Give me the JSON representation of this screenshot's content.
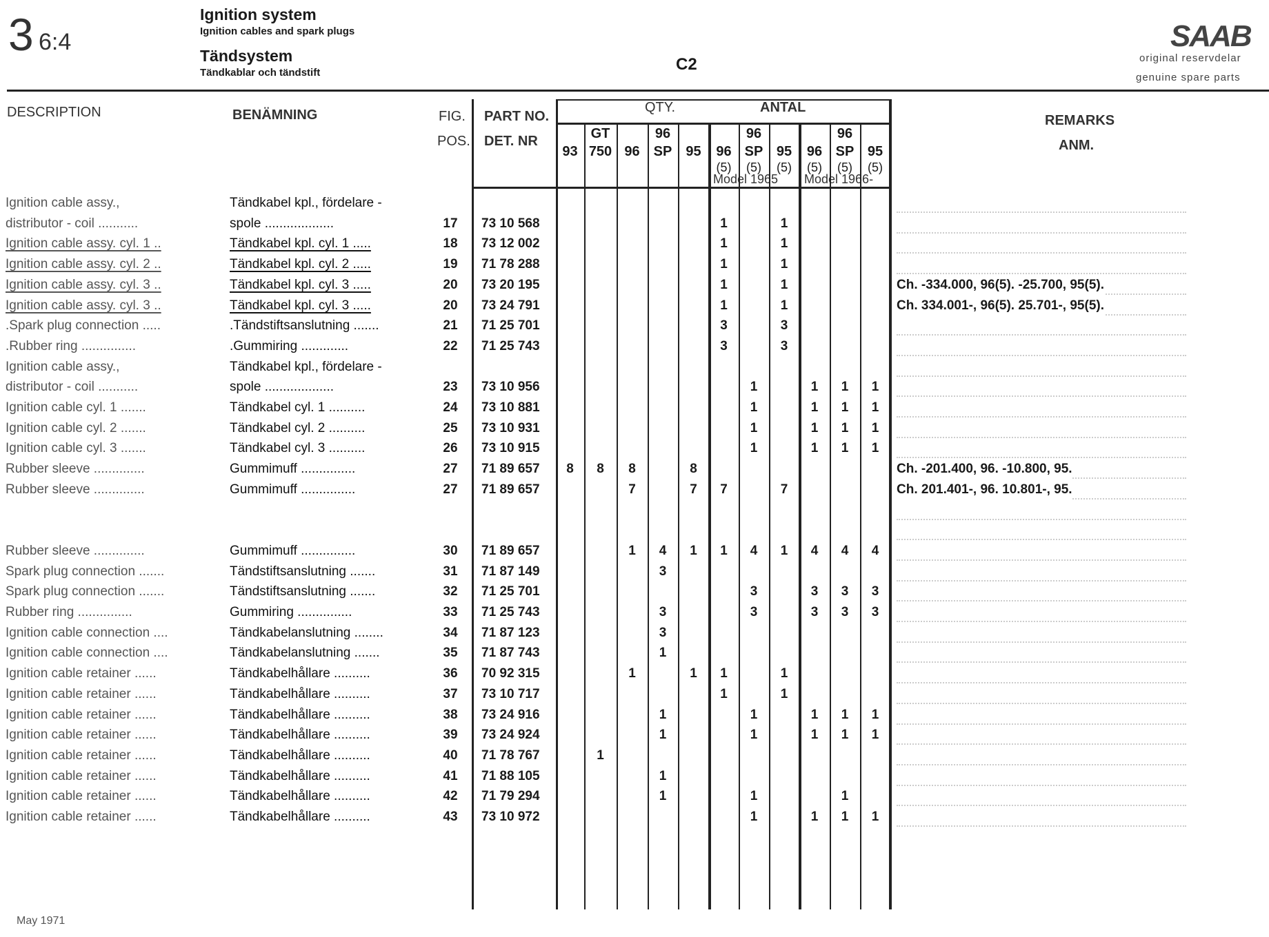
{
  "header": {
    "section_number": "3",
    "section_sub": "6:4",
    "title_en": "Ignition system",
    "subtitle_en": "Ignition cables and spark plugs",
    "title_sv": "Tändsystem",
    "subtitle_sv": "Tändkablar och tändstift",
    "page_code": "C2",
    "logo": "SAAB",
    "tagline_sv": "original reservdelar",
    "tagline_en": "genuine spare parts"
  },
  "columns": {
    "description": "DESCRIPTION",
    "benamning": "BENÄMNING",
    "fig": "FIG.",
    "pos": "POS.",
    "part_no": "PART NO.",
    "det_nr": "DET. NR",
    "qty": "QTY.",
    "antal": "ANTAL",
    "remarks": "REMARKS",
    "anm": "ANM.",
    "model_1965": "Model 1965",
    "model_1966": "Model 1966-",
    "qty_columns": [
      {
        "top": "",
        "bottom": "93",
        "sub": ""
      },
      {
        "top": "GT",
        "bottom": "750",
        "sub": ""
      },
      {
        "top": "",
        "bottom": "96",
        "sub": ""
      },
      {
        "top": "96",
        "bottom": "SP",
        "sub": ""
      },
      {
        "top": "",
        "bottom": "95",
        "sub": ""
      },
      {
        "top": "",
        "bottom": "96",
        "sub": "(5)"
      },
      {
        "top": "96",
        "bottom": "SP",
        "sub": "(5)"
      },
      {
        "top": "",
        "bottom": "95",
        "sub": "(5)"
      },
      {
        "top": "",
        "bottom": "96",
        "sub": "(5)"
      },
      {
        "top": "96",
        "bottom": "SP",
        "sub": "(5)"
      },
      {
        "top": "",
        "bottom": "95",
        "sub": "(5)"
      }
    ]
  },
  "rows": [
    {
      "desc": "Ignition cable assy.,",
      "ben": "Tändkabel kpl., fördelare -",
      "fig": "",
      "part": "",
      "qty": [
        "",
        "",
        "",
        "",
        "",
        "",
        "",
        "",
        "",
        "",
        ""
      ],
      "remark": ""
    },
    {
      "desc": "distributor - coil ...........",
      "ben": "spole ...................",
      "fig": "17",
      "part": "73 10 568",
      "qty": [
        "",
        "",
        "",
        "",
        "",
        "1",
        "",
        "1",
        "",
        "",
        ""
      ],
      "remark": ""
    },
    {
      "desc": "Ignition cable assy. cyl. 1 ..",
      "ben": "Tändkabel kpl. cyl. 1 .....",
      "fig": "18",
      "part": "73 12 002",
      "qty": [
        "",
        "",
        "",
        "",
        "",
        "1",
        "",
        "1",
        "",
        "",
        ""
      ],
      "remark": "",
      "underlined": true
    },
    {
      "desc": "Ignition cable assy. cyl. 2 ..",
      "ben": "Tändkabel kpl. cyl. 2 .....",
      "fig": "19",
      "part": "71 78 288",
      "qty": [
        "",
        "",
        "",
        "",
        "",
        "1",
        "",
        "1",
        "",
        "",
        ""
      ],
      "remark": "",
      "underlined": true
    },
    {
      "desc": "Ignition cable assy. cyl. 3 ..",
      "ben": "Tändkabel kpl. cyl. 3 .....",
      "fig": "20",
      "part": "73 20 195",
      "qty": [
        "",
        "",
        "",
        "",
        "",
        "1",
        "",
        "1",
        "",
        "",
        ""
      ],
      "remark": "Ch. -334.000, 96(5).  -25.700, 95(5).",
      "underlined": true
    },
    {
      "desc": "Ignition cable assy. cyl. 3 ..",
      "ben": "Tändkabel kpl. cyl. 3 .....",
      "fig": "20",
      "part": "73 24 791",
      "qty": [
        "",
        "",
        "",
        "",
        "",
        "1",
        "",
        "1",
        "",
        "",
        ""
      ],
      "remark": "Ch. 334.001-, 96(5).  25.701-, 95(5).",
      "underlined": true
    },
    {
      "desc": ".Spark plug connection .....",
      "ben": ".Tändstiftsanslutning .......",
      "fig": "21",
      "part": "71 25 701",
      "qty": [
        "",
        "",
        "",
        "",
        "",
        "3",
        "",
        "3",
        "",
        "",
        ""
      ],
      "remark": ""
    },
    {
      "desc": ".Rubber ring ...............",
      "ben": ".Gummiring .............",
      "fig": "22",
      "part": "71 25 743",
      "qty": [
        "",
        "",
        "",
        "",
        "",
        "3",
        "",
        "3",
        "",
        "",
        ""
      ],
      "remark": ""
    },
    {
      "desc": "Ignition cable assy.,",
      "ben": "Tändkabel kpl., fördelare -",
      "fig": "",
      "part": "",
      "qty": [
        "",
        "",
        "",
        "",
        "",
        "",
        "",
        "",
        "",
        "",
        ""
      ],
      "remark": ""
    },
    {
      "desc": "distributor - coil ...........",
      "ben": "spole ...................",
      "fig": "23",
      "part": "73 10 956",
      "qty": [
        "",
        "",
        "",
        "",
        "",
        "",
        "1",
        "",
        "1",
        "1",
        "1"
      ],
      "remark": ""
    },
    {
      "desc": "Ignition cable cyl. 1 .......",
      "ben": "Tändkabel cyl. 1 ..........",
      "fig": "24",
      "part": "73 10 881",
      "qty": [
        "",
        "",
        "",
        "",
        "",
        "",
        "1",
        "",
        "1",
        "1",
        "1"
      ],
      "remark": ""
    },
    {
      "desc": "Ignition cable cyl. 2 .......",
      "ben": "Tändkabel cyl. 2 ..........",
      "fig": "25",
      "part": "73 10 931",
      "qty": [
        "",
        "",
        "",
        "",
        "",
        "",
        "1",
        "",
        "1",
        "1",
        "1"
      ],
      "remark": ""
    },
    {
      "desc": "Ignition cable cyl. 3 .......",
      "ben": "Tändkabel cyl. 3 ..........",
      "fig": "26",
      "part": "73 10 915",
      "qty": [
        "",
        "",
        "",
        "",
        "",
        "",
        "1",
        "",
        "1",
        "1",
        "1"
      ],
      "remark": ""
    },
    {
      "desc": "Rubber sleeve ..............",
      "ben": "Gummimuff ...............",
      "fig": "27",
      "part": "71 89 657",
      "qty": [
        "8",
        "8",
        "8",
        "",
        "8",
        "",
        "",
        "",
        "",
        "",
        ""
      ],
      "remark": "Ch. -201.400, 96.  -10.800, 95."
    },
    {
      "desc": "Rubber sleeve ..............",
      "ben": "Gummimuff ...............",
      "fig": "27",
      "part": "71 89 657",
      "qty": [
        "",
        "",
        "7",
        "",
        "7",
        "7",
        "",
        "7",
        "",
        "",
        ""
      ],
      "remark": "Ch. 201.401-, 96.  10.801-, 95."
    },
    {
      "desc": "",
      "ben": "",
      "fig": "",
      "part": "",
      "qty": [
        "",
        "",
        "",
        "",
        "",
        "",
        "",
        "",
        "",
        "",
        ""
      ],
      "remark": ""
    },
    {
      "desc": "",
      "ben": "",
      "fig": "",
      "part": "",
      "qty": [
        "",
        "",
        "",
        "",
        "",
        "",
        "",
        "",
        "",
        "",
        ""
      ],
      "remark": ""
    },
    {
      "desc": "Rubber sleeve ..............",
      "ben": "Gummimuff ...............",
      "fig": "30",
      "part": "71 89 657",
      "qty": [
        "",
        "",
        "1",
        "4",
        "1",
        "1",
        "4",
        "1",
        "4",
        "4",
        "4"
      ],
      "remark": ""
    },
    {
      "desc": "Spark plug connection .......",
      "ben": "Tändstiftsanslutning .......",
      "fig": "31",
      "part": "71 87 149",
      "qty": [
        "",
        "",
        "",
        "3",
        "",
        "",
        "",
        "",
        "",
        "",
        ""
      ],
      "remark": ""
    },
    {
      "desc": "Spark plug connection .......",
      "ben": "Tändstiftsanslutning .......",
      "fig": "32",
      "part": "71 25 701",
      "qty": [
        "",
        "",
        "",
        "",
        "",
        "",
        "3",
        "",
        "3",
        "3",
        "3"
      ],
      "remark": ""
    },
    {
      "desc": "Rubber ring ...............",
      "ben": "Gummiring ...............",
      "fig": "33",
      "part": "71 25 743",
      "qty": [
        "",
        "",
        "",
        "3",
        "",
        "",
        "3",
        "",
        "3",
        "3",
        "3"
      ],
      "remark": ""
    },
    {
      "desc": "Ignition cable connection ....",
      "ben": "Tändkabelanslutning ........",
      "fig": "34",
      "part": "71 87 123",
      "qty": [
        "",
        "",
        "",
        "3",
        "",
        "",
        "",
        "",
        "",
        "",
        ""
      ],
      "remark": ""
    },
    {
      "desc": "Ignition cable connection ....",
      "ben": "Tändkabelanslutning .......",
      "fig": "35",
      "part": "71 87 743",
      "qty": [
        "",
        "",
        "",
        "1",
        "",
        "",
        "",
        "",
        "",
        "",
        ""
      ],
      "remark": ""
    },
    {
      "desc": "Ignition cable retainer ......",
      "ben": "Tändkabelhållare ..........",
      "fig": "36",
      "part": "70 92 315",
      "qty": [
        "",
        "",
        "1",
        "",
        "1",
        "1",
        "",
        "1",
        "",
        "",
        ""
      ],
      "remark": ""
    },
    {
      "desc": "Ignition cable retainer ......",
      "ben": "Tändkabelhållare ..........",
      "fig": "37",
      "part": "73 10 717",
      "qty": [
        "",
        "",
        "",
        "",
        "",
        "1",
        "",
        "1",
        "",
        "",
        ""
      ],
      "remark": ""
    },
    {
      "desc": "Ignition cable retainer ......",
      "ben": "Tändkabelhållare ..........",
      "fig": "38",
      "part": "73 24 916",
      "qty": [
        "",
        "",
        "",
        "1",
        "",
        "",
        "1",
        "",
        "1",
        "1",
        "1"
      ],
      "remark": ""
    },
    {
      "desc": "Ignition cable retainer ......",
      "ben": "Tändkabelhållare ..........",
      "fig": "39",
      "part": "73 24 924",
      "qty": [
        "",
        "",
        "",
        "1",
        "",
        "",
        "1",
        "",
        "1",
        "1",
        "1"
      ],
      "remark": ""
    },
    {
      "desc": "Ignition cable retainer ......",
      "ben": "Tändkabelhållare ..........",
      "fig": "40",
      "part": "71 78 767",
      "qty": [
        "",
        "1",
        "",
        "",
        "",
        "",
        "",
        "",
        "",
        "",
        ""
      ],
      "remark": ""
    },
    {
      "desc": "Ignition cable retainer ......",
      "ben": "Tändkabelhållare ..........",
      "fig": "41",
      "part": "71 88 105",
      "qty": [
        "",
        "",
        "",
        "1",
        "",
        "",
        "",
        "",
        "",
        "",
        ""
      ],
      "remark": ""
    },
    {
      "desc": "Ignition cable retainer ......",
      "ben": "Tändkabelhållare ..........",
      "fig": "42",
      "part": "71 79 294",
      "qty": [
        "",
        "",
        "",
        "1",
        "",
        "",
        "1",
        "",
        "",
        "1",
        ""
      ],
      "remark": ""
    },
    {
      "desc": "Ignition cable retainer ......",
      "ben": "Tändkabelhållare ..........",
      "fig": "43",
      "part": "73 10 972",
      "qty": [
        "",
        "",
        "",
        "",
        "",
        "",
        "1",
        "",
        "1",
        "1",
        "1"
      ],
      "remark": ""
    }
  ],
  "footer": {
    "date": "May 1971"
  }
}
